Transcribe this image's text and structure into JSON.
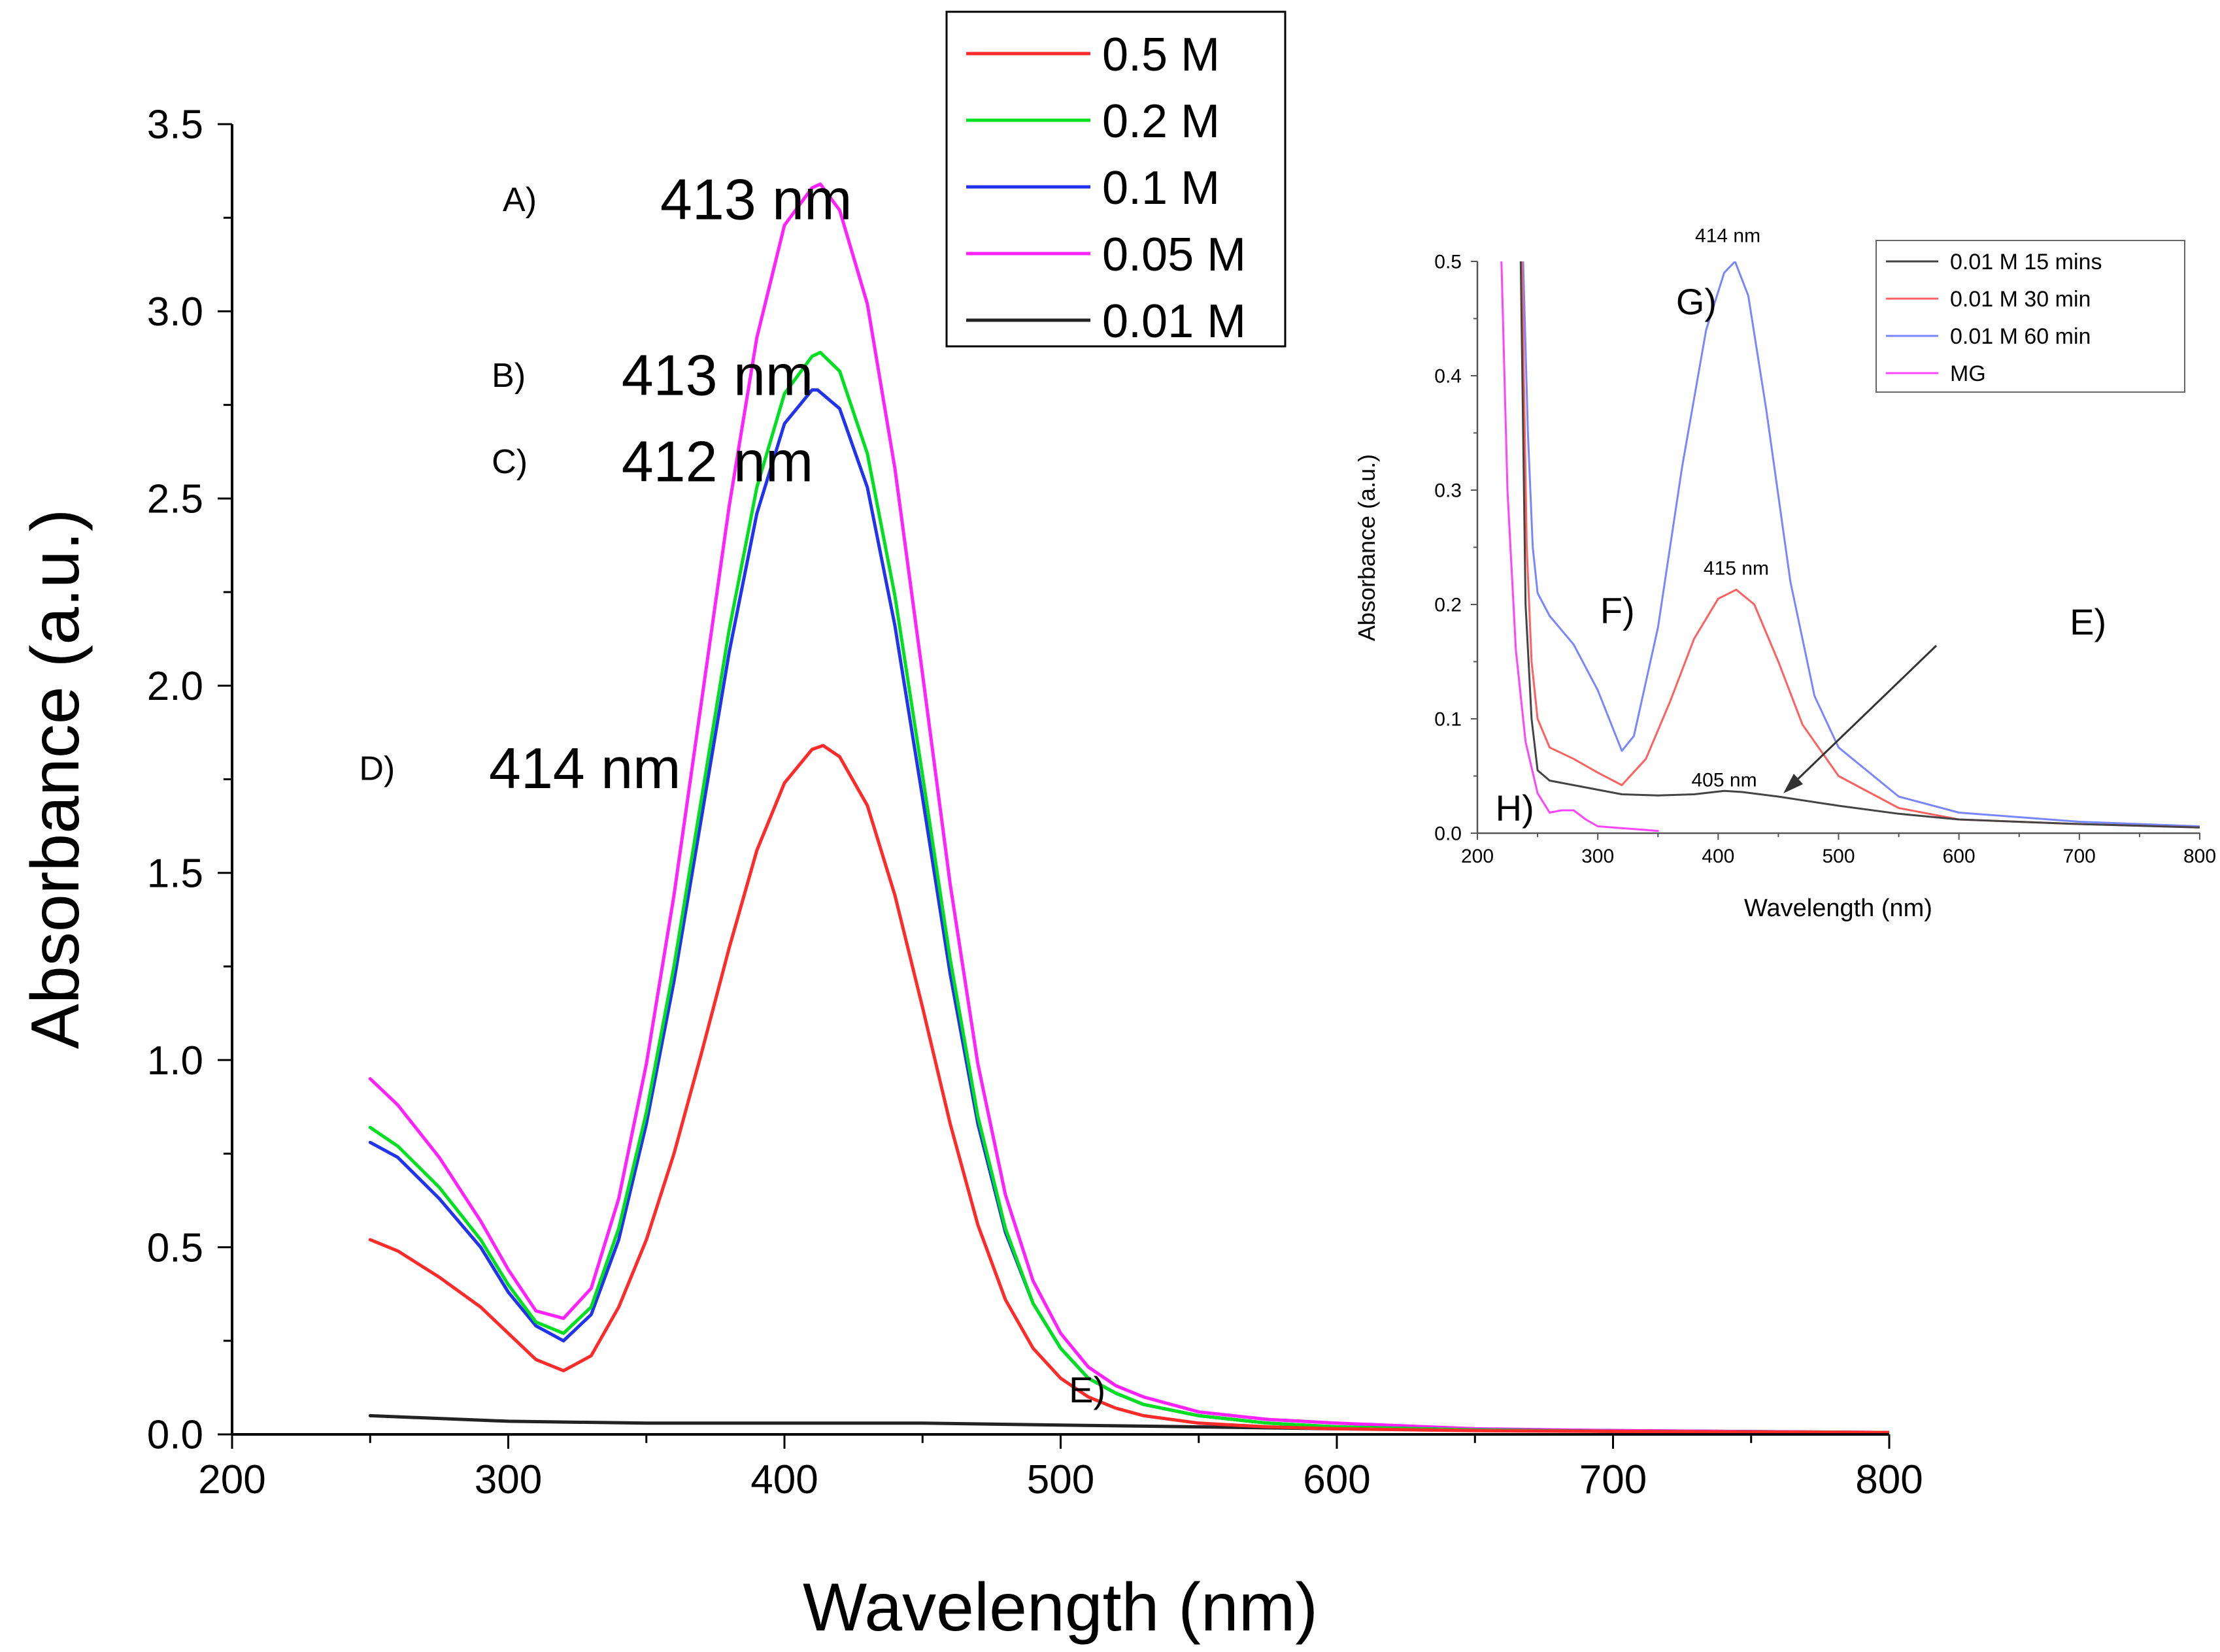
{
  "chart_data": [
    {
      "type": "line",
      "panel": "main",
      "xlabel": "Wavelength (nm)",
      "ylabel": "Absorbance (a.u.)",
      "xlim": [
        200,
        800
      ],
      "ylim": [
        0,
        3.5
      ],
      "xticks": [
        "200",
        "300",
        "400",
        "500",
        "600",
        "700",
        "800"
      ],
      "yticks": [
        "0.0",
        "0.5",
        "1.0",
        "1.5",
        "2.0",
        "2.5",
        "3.0",
        "3.5"
      ],
      "legend_position": "top-center",
      "series": [
        {
          "name": "0.5 M",
          "color": "#ff2b2b",
          "x": [
            250,
            260,
            275,
            290,
            300,
            310,
            320,
            330,
            340,
            350,
            360,
            370,
            380,
            390,
            400,
            410,
            414,
            420,
            430,
            440,
            450,
            460,
            470,
            480,
            490,
            500,
            510,
            520,
            530,
            550,
            575,
            600,
            650,
            700,
            800
          ],
          "y": [
            0.52,
            0.49,
            0.42,
            0.34,
            0.27,
            0.2,
            0.17,
            0.21,
            0.34,
            0.52,
            0.75,
            1.02,
            1.3,
            1.56,
            1.74,
            1.83,
            1.84,
            1.81,
            1.68,
            1.44,
            1.14,
            0.83,
            0.56,
            0.36,
            0.23,
            0.15,
            0.1,
            0.07,
            0.05,
            0.03,
            0.02,
            0.015,
            0.01,
            0.008,
            0.005
          ]
        },
        {
          "name": "0.2 M",
          "color": "#00e020",
          "x": [
            250,
            260,
            275,
            290,
            300,
            310,
            320,
            330,
            340,
            350,
            360,
            370,
            380,
            390,
            400,
            410,
            413,
            420,
            430,
            440,
            450,
            460,
            470,
            480,
            490,
            500,
            510,
            520,
            530,
            550,
            575,
            600,
            650,
            700,
            800
          ],
          "y": [
            0.82,
            0.77,
            0.66,
            0.52,
            0.4,
            0.3,
            0.27,
            0.34,
            0.55,
            0.86,
            1.25,
            1.7,
            2.15,
            2.53,
            2.78,
            2.88,
            2.89,
            2.84,
            2.62,
            2.24,
            1.76,
            1.27,
            0.85,
            0.55,
            0.35,
            0.23,
            0.15,
            0.11,
            0.08,
            0.05,
            0.03,
            0.02,
            0.012,
            0.008,
            0.005
          ]
        },
        {
          "name": "0.1 M",
          "color": "#2233ee",
          "x": [
            250,
            260,
            275,
            290,
            300,
            310,
            320,
            330,
            340,
            350,
            360,
            370,
            380,
            390,
            400,
            410,
            412,
            420,
            430,
            440,
            450,
            460,
            470,
            480,
            490,
            500,
            510,
            520,
            530,
            550,
            575,
            600,
            650,
            700,
            800
          ],
          "y": [
            0.78,
            0.74,
            0.63,
            0.5,
            0.38,
            0.29,
            0.25,
            0.32,
            0.52,
            0.83,
            1.21,
            1.65,
            2.09,
            2.46,
            2.7,
            2.79,
            2.79,
            2.74,
            2.53,
            2.16,
            1.7,
            1.23,
            0.83,
            0.54,
            0.35,
            0.23,
            0.15,
            0.11,
            0.08,
            0.05,
            0.03,
            0.02,
            0.012,
            0.008,
            0.005
          ]
        },
        {
          "name": "0.05 M",
          "color": "#ff22ff",
          "x": [
            250,
            260,
            275,
            290,
            300,
            310,
            320,
            330,
            340,
            350,
            360,
            370,
            380,
            390,
            400,
            410,
            413,
            420,
            430,
            440,
            450,
            460,
            470,
            480,
            490,
            500,
            510,
            520,
            530,
            550,
            575,
            600,
            650,
            700,
            800
          ],
          "y": [
            0.95,
            0.88,
            0.74,
            0.57,
            0.44,
            0.33,
            0.31,
            0.39,
            0.63,
            0.99,
            1.44,
            1.96,
            2.48,
            2.93,
            3.23,
            3.33,
            3.34,
            3.27,
            3.02,
            2.58,
            2.03,
            1.47,
            0.99,
            0.64,
            0.41,
            0.27,
            0.18,
            0.13,
            0.1,
            0.06,
            0.04,
            0.03,
            0.015,
            0.01,
            0.005
          ]
        },
        {
          "name": "0.01 M",
          "color": "#222222",
          "x": [
            250,
            300,
            350,
            400,
            450,
            500,
            550,
            600,
            700,
            800
          ],
          "y": [
            0.05,
            0.035,
            0.03,
            0.03,
            0.03,
            0.025,
            0.02,
            0.015,
            0.01,
            0.005
          ]
        }
      ],
      "annotations": [
        {
          "text": "A)",
          "x": 298,
          "y": 3.3
        },
        {
          "text": "413 nm",
          "x": 355,
          "y": 3.3
        },
        {
          "text": "B)",
          "x": 294,
          "y": 2.83
        },
        {
          "text": "413 nm",
          "x": 341,
          "y": 2.83
        },
        {
          "text": "C)",
          "x": 294,
          "y": 2.6
        },
        {
          "text": "412 nm",
          "x": 341,
          "y": 2.6
        },
        {
          "text": "D)",
          "x": 246,
          "y": 1.78
        },
        {
          "text": "414 nm",
          "x": 293,
          "y": 1.78
        },
        {
          "text": "E)",
          "x": 503,
          "y": 0.12
        }
      ]
    },
    {
      "type": "line",
      "panel": "inset",
      "xlabel": "Wavelength (nm)",
      "ylabel": "Absorbance (a.u.)",
      "xlim": [
        200,
        800
      ],
      "ylim": [
        0,
        0.5
      ],
      "xticks": [
        "200",
        "300",
        "400",
        "500",
        "600",
        "700",
        "800"
      ],
      "yticks": [
        "0.0",
        "0.1",
        "0.2",
        "0.3",
        "0.4",
        "0.5"
      ],
      "legend_position": "top-right",
      "series": [
        {
          "name": "0.01 M 15 mins",
          "color": "#444444",
          "x": [
            236,
            240,
            245,
            250,
            260,
            280,
            300,
            320,
            350,
            380,
            405,
            420,
            450,
            500,
            550,
            600,
            700,
            800
          ],
          "y": [
            0.5,
            0.2,
            0.1,
            0.055,
            0.046,
            0.042,
            0.038,
            0.034,
            0.033,
            0.034,
            0.037,
            0.036,
            0.032,
            0.024,
            0.017,
            0.012,
            0.008,
            0.005
          ]
        },
        {
          "name": "0.01 M 30 min",
          "color": "#ff6060",
          "x": [
            237,
            241,
            245,
            250,
            260,
            280,
            300,
            320,
            340,
            360,
            380,
            400,
            415,
            430,
            450,
            470,
            500,
            550,
            600,
            700,
            800
          ],
          "y": [
            0.5,
            0.25,
            0.15,
            0.1,
            0.075,
            0.065,
            0.053,
            0.042,
            0.065,
            0.115,
            0.17,
            0.205,
            0.213,
            0.2,
            0.15,
            0.095,
            0.05,
            0.022,
            0.012,
            0.008,
            0.005
          ]
        },
        {
          "name": "0.01 M 60 min",
          "color": "#7a86ff",
          "x": [
            238,
            242,
            246,
            250,
            260,
            280,
            300,
            320,
            330,
            350,
            370,
            390,
            405,
            414,
            425,
            440,
            460,
            480,
            500,
            550,
            600,
            700,
            800
          ],
          "y": [
            0.5,
            0.35,
            0.25,
            0.21,
            0.19,
            0.165,
            0.125,
            0.072,
            0.085,
            0.18,
            0.32,
            0.44,
            0.49,
            0.5,
            0.47,
            0.37,
            0.22,
            0.12,
            0.075,
            0.032,
            0.018,
            0.01,
            0.006
          ]
        },
        {
          "name": "MG",
          "color": "#ff44ff",
          "x": [
            220,
            225,
            232,
            240,
            250,
            260,
            270,
            280,
            290,
            300,
            350
          ],
          "y": [
            0.5,
            0.3,
            0.16,
            0.08,
            0.035,
            0.018,
            0.02,
            0.02,
            0.012,
            0.006,
            0.002
          ]
        }
      ],
      "annotations": [
        {
          "text": "414 nm",
          "x": 408,
          "y": 0.523
        },
        {
          "text": "415 nm",
          "x": 415,
          "y": 0.232
        },
        {
          "text": "405 nm",
          "x": 405,
          "y": 0.047
        },
        {
          "text": "G)",
          "x": 365,
          "y": 0.465
        },
        {
          "text": "F)",
          "x": 302,
          "y": 0.195
        },
        {
          "text": "E)",
          "x": 692,
          "y": 0.185
        },
        {
          "text": "H)",
          "x": 215,
          "y": 0.022
        }
      ]
    }
  ]
}
